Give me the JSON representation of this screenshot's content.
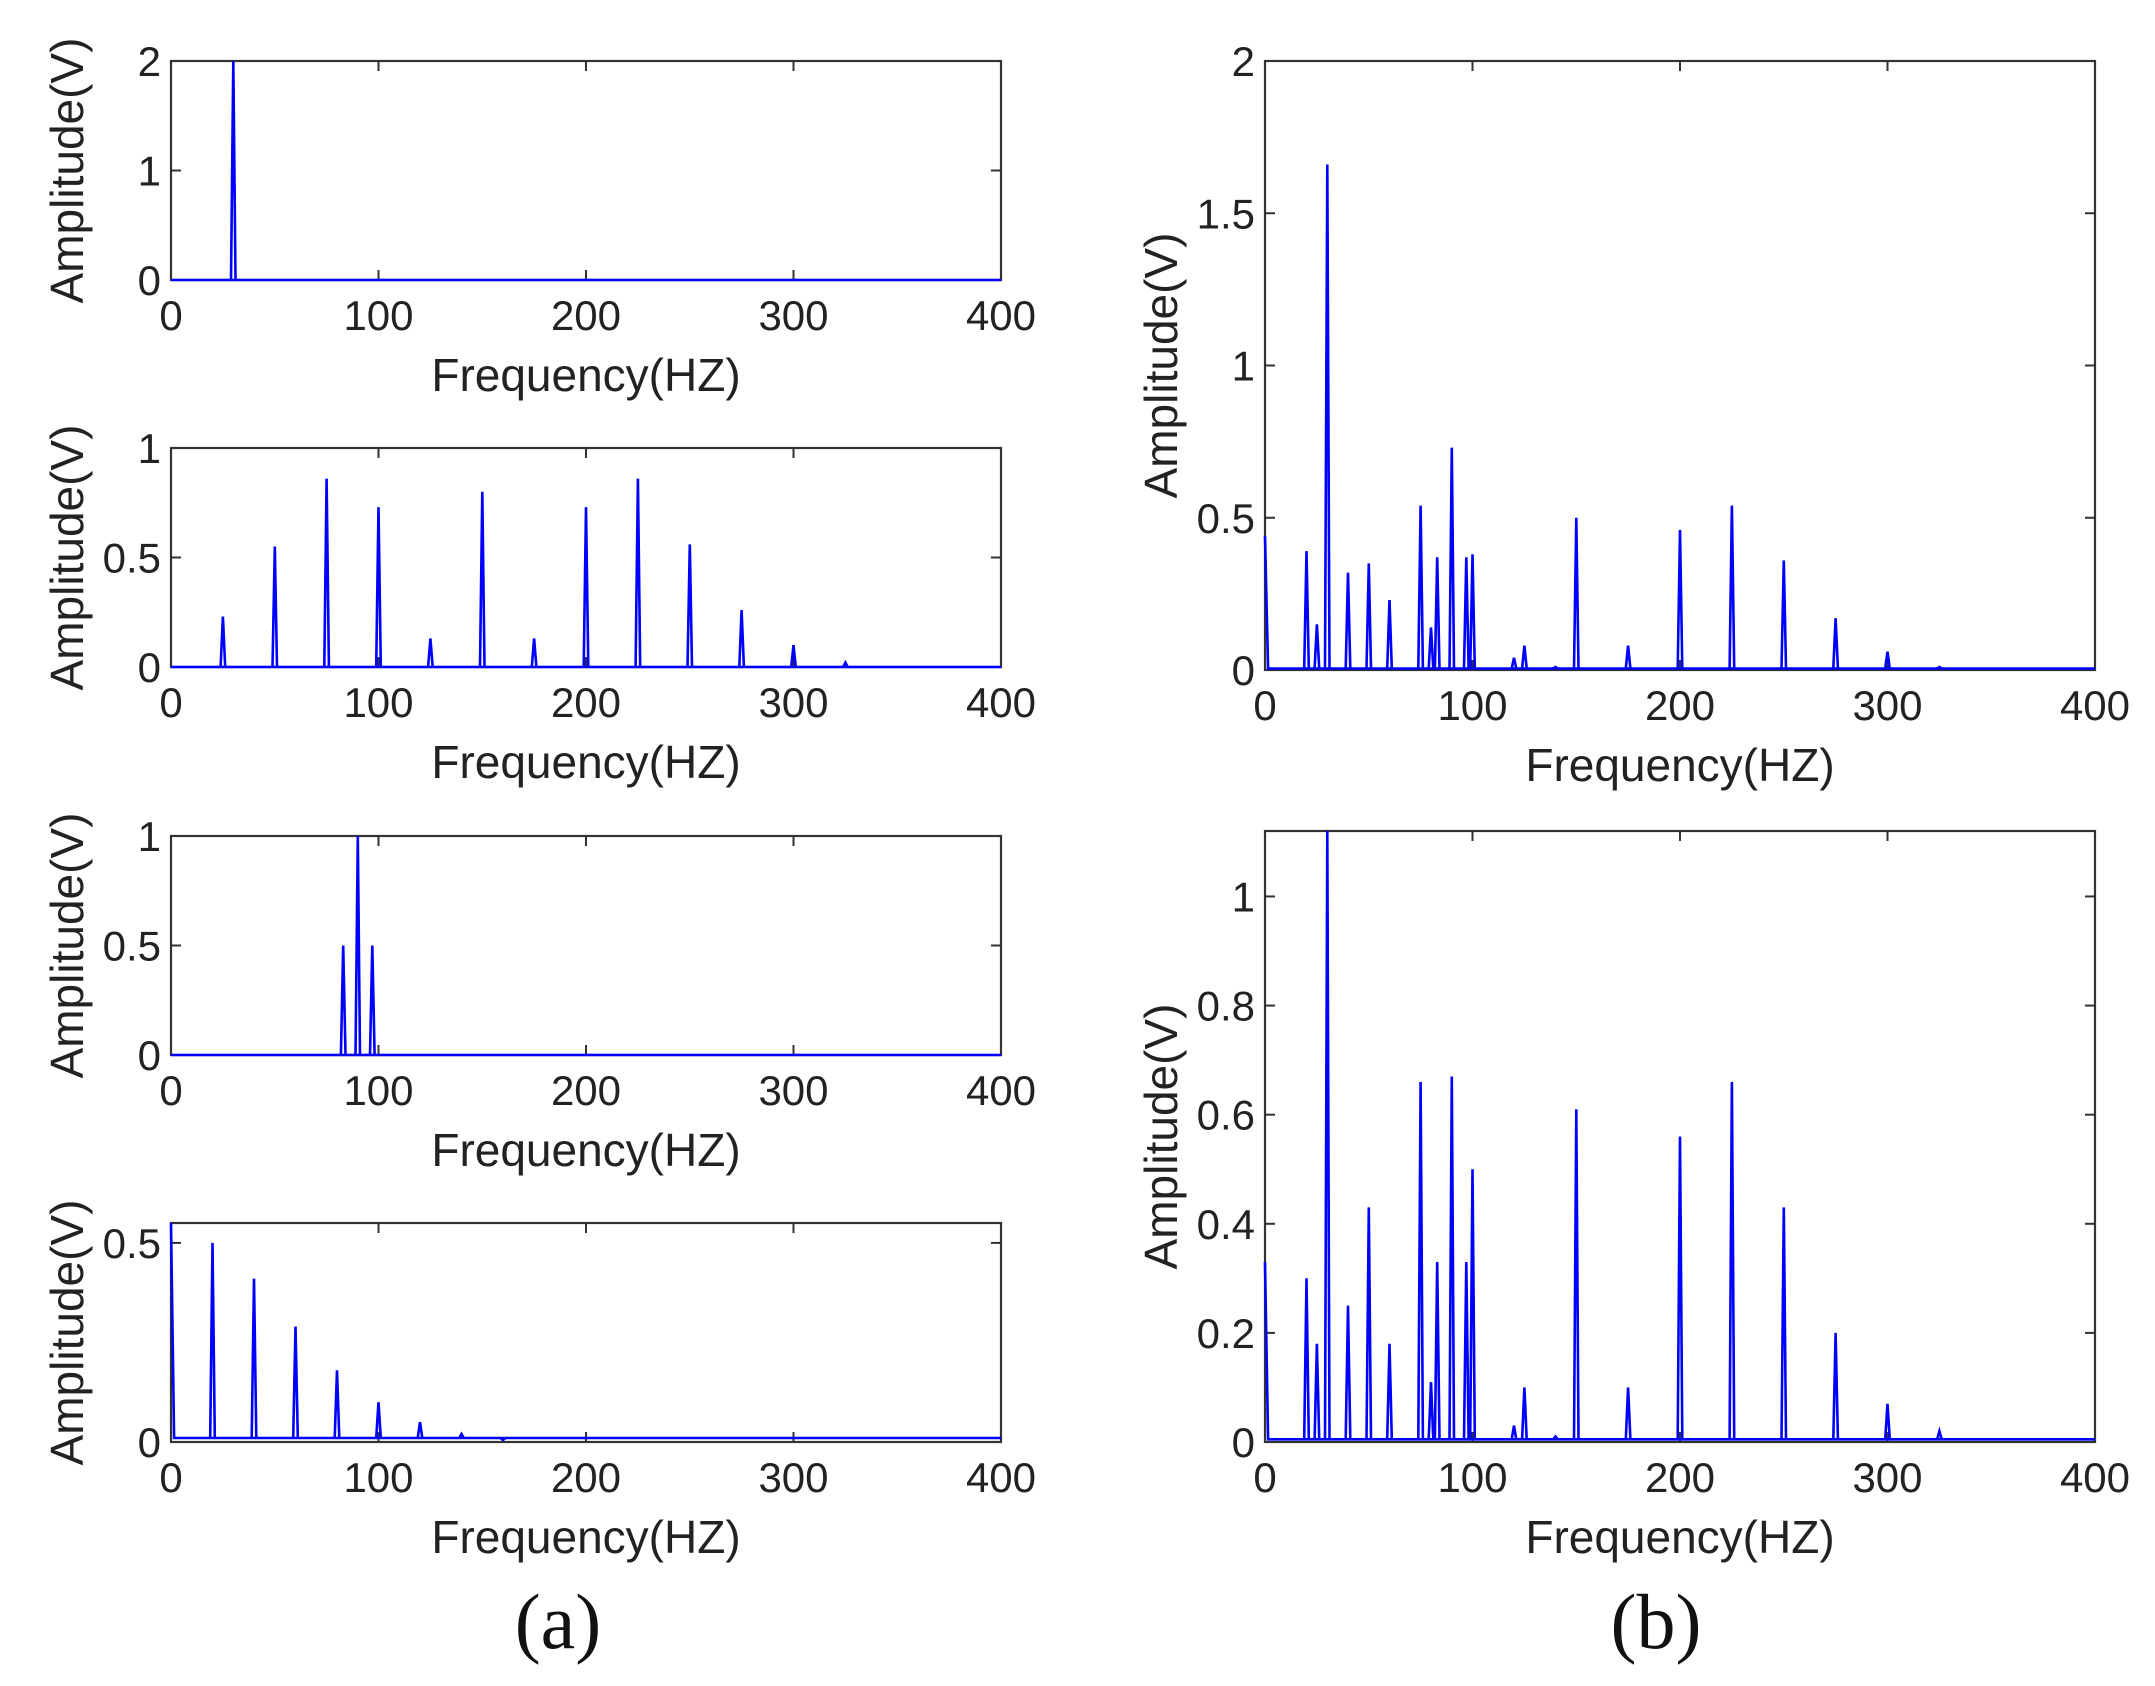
{
  "figure": {
    "caption_a": "(a)",
    "caption_b": "(b)",
    "line_color": "#0000ff"
  },
  "chart_data": [
    {
      "id": "a1",
      "type": "line",
      "xlabel": "Frequency(HZ)",
      "ylabel": "Amplitude(V)",
      "xlim": [
        0,
        400
      ],
      "ylim": [
        0,
        2
      ],
      "xticks": [
        0,
        100,
        200,
        300,
        400
      ],
      "yticks": [
        0,
        1,
        2
      ],
      "ytick_labels": [
        "0",
        "1",
        "2"
      ],
      "peaks": [
        [
          30,
          2.0
        ]
      ],
      "baseline": 0
    },
    {
      "id": "a2",
      "type": "line",
      "xlabel": "Frequency(HZ)",
      "ylabel": "Amplitude(V)",
      "xlim": [
        0,
        400
      ],
      "ylim": [
        0,
        1
      ],
      "xticks": [
        0,
        100,
        200,
        300,
        400
      ],
      "yticks": [
        0,
        0.5,
        1
      ],
      "ytick_labels": [
        "0",
        "0.5",
        "1"
      ],
      "peaks": [
        [
          25,
          0.23
        ],
        [
          50,
          0.55
        ],
        [
          75,
          0.86
        ],
        [
          100,
          0.73
        ],
        [
          125,
          0.13
        ],
        [
          150,
          0.8
        ],
        [
          175,
          0.13
        ],
        [
          200,
          0.73
        ],
        [
          225,
          0.86
        ],
        [
          250,
          0.56
        ],
        [
          275,
          0.26
        ],
        [
          300,
          0.1
        ],
        [
          325,
          0.02
        ]
      ],
      "baseline": 0
    },
    {
      "id": "a3",
      "type": "line",
      "xlabel": "Frequency(HZ)",
      "ylabel": "Amplitude(V)",
      "xlim": [
        0,
        400
      ],
      "ylim": [
        0,
        1
      ],
      "xticks": [
        0,
        100,
        200,
        300,
        400
      ],
      "yticks": [
        0,
        0.5,
        1
      ],
      "ytick_labels": [
        "0",
        "0.5",
        "1"
      ],
      "peaks": [
        [
          83,
          0.5
        ],
        [
          90,
          1.0
        ],
        [
          97,
          0.5
        ]
      ],
      "baseline": 0
    },
    {
      "id": "a4",
      "type": "line",
      "xlabel": "Frequency(HZ)",
      "ylabel": "Amplitude(V)",
      "xlim": [
        0,
        400
      ],
      "ylim": [
        0,
        0.55
      ],
      "xticks": [
        0,
        100,
        200,
        300,
        400
      ],
      "yticks": [
        0,
        0.5
      ],
      "ytick_labels": [
        "0",
        "0.5"
      ],
      "start_value": 0.55,
      "peaks": [
        [
          20,
          0.5
        ],
        [
          40,
          0.41
        ],
        [
          60,
          0.29
        ],
        [
          80,
          0.18
        ],
        [
          100,
          0.1
        ],
        [
          120,
          0.05
        ],
        [
          140,
          0.02
        ],
        [
          160,
          0.005
        ]
      ],
      "baseline": 0.01
    },
    {
      "id": "b1",
      "type": "line",
      "xlabel": "Frequency(HZ)",
      "ylabel": "Amplitude(V)",
      "xlim": [
        0,
        400
      ],
      "ylim": [
        0,
        2
      ],
      "xticks": [
        0,
        100,
        200,
        300,
        400
      ],
      "yticks": [
        0,
        0.5,
        1,
        1.5,
        2
      ],
      "ytick_labels": [
        "0",
        "0.5",
        "1",
        "1.5",
        "2"
      ],
      "start_value": 0.44,
      "peaks": [
        [
          20,
          0.39
        ],
        [
          25,
          0.15
        ],
        [
          30,
          1.66
        ],
        [
          40,
          0.32
        ],
        [
          50,
          0.35
        ],
        [
          60,
          0.23
        ],
        [
          75,
          0.54
        ],
        [
          80,
          0.14
        ],
        [
          83,
          0.37
        ],
        [
          90,
          0.73
        ],
        [
          97,
          0.37
        ],
        [
          100,
          0.38
        ],
        [
          120,
          0.04
        ],
        [
          125,
          0.08
        ],
        [
          140,
          0.01
        ],
        [
          150,
          0.5
        ],
        [
          175,
          0.08
        ],
        [
          200,
          0.46
        ],
        [
          225,
          0.54
        ],
        [
          250,
          0.36
        ],
        [
          275,
          0.17
        ],
        [
          300,
          0.06
        ],
        [
          325,
          0.01
        ]
      ],
      "baseline": 0.005
    },
    {
      "id": "b2",
      "type": "line",
      "xlabel": "Frequency(HZ)",
      "ylabel": "Amplitude(V)",
      "xlim": [
        0,
        400
      ],
      "ylim": [
        0,
        1.12
      ],
      "xticks": [
        0,
        100,
        200,
        300,
        400
      ],
      "yticks": [
        0,
        0.2,
        0.4,
        0.6,
        0.8,
        1
      ],
      "ytick_labels": [
        "0",
        "0.2",
        "0.4",
        "0.6",
        "0.8",
        "1"
      ],
      "start_value": 0.33,
      "peaks": [
        [
          20,
          0.3
        ],
        [
          25,
          0.18
        ],
        [
          30,
          1.12
        ],
        [
          40,
          0.25
        ],
        [
          50,
          0.43
        ],
        [
          60,
          0.18
        ],
        [
          75,
          0.66
        ],
        [
          80,
          0.11
        ],
        [
          83,
          0.33
        ],
        [
          90,
          0.67
        ],
        [
          97,
          0.33
        ],
        [
          100,
          0.5
        ],
        [
          120,
          0.03
        ],
        [
          125,
          0.1
        ],
        [
          140,
          0.01
        ],
        [
          150,
          0.61
        ],
        [
          175,
          0.1
        ],
        [
          200,
          0.56
        ],
        [
          225,
          0.66
        ],
        [
          250,
          0.43
        ],
        [
          275,
          0.2
        ],
        [
          300,
          0.07
        ],
        [
          325,
          0.02
        ]
      ],
      "baseline": 0.005
    }
  ]
}
